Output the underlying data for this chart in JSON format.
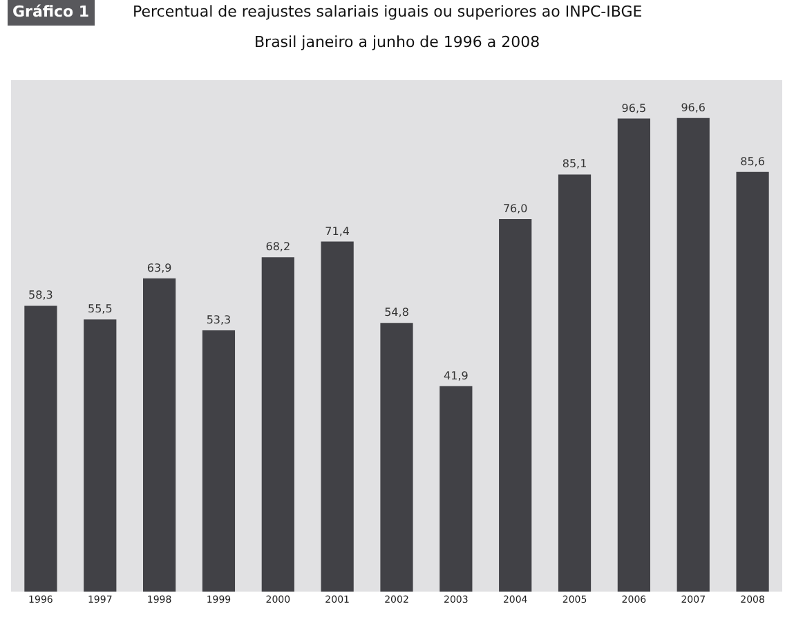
{
  "chart_data": {
    "type": "bar",
    "title": "Percentual de reajustes salariais iguais ou superiores ao INPC-IBGE",
    "subtitle": "Brasil janeiro a junho de 1996 a 2008",
    "annotations": [
      "Gráfico 1"
    ],
    "categories": [
      "1996",
      "1997",
      "1998",
      "1999",
      "2000",
      "2001",
      "2002",
      "2003",
      "2004",
      "2005",
      "2006",
      "2007",
      "2008"
    ],
    "values": [
      58.3,
      55.5,
      63.9,
      53.3,
      68.2,
      71.4,
      54.8,
      41.9,
      76.0,
      85.1,
      96.5,
      96.6,
      85.6
    ],
    "value_labels": [
      "58,3",
      "55,5",
      "63,9",
      "53,3",
      "68,2",
      "71,4",
      "54,8",
      "41,9",
      "76,0",
      "85,1",
      "96,5",
      "96,6",
      "85,6"
    ],
    "color": "#414146",
    "grid": false,
    "legend": false
  }
}
